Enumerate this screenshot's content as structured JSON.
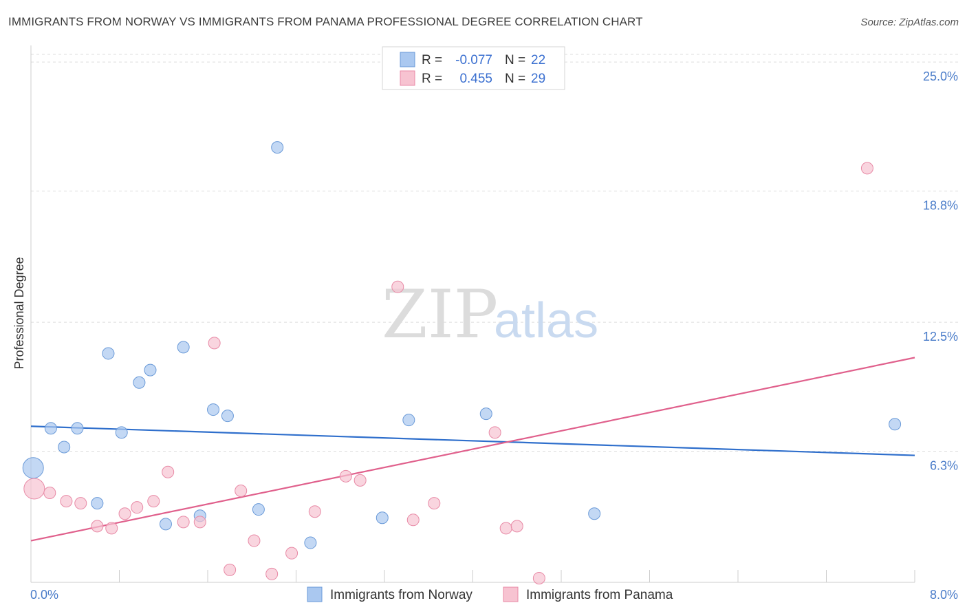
{
  "header": {
    "title": "IMMIGRANTS FROM NORWAY VS IMMIGRANTS FROM PANAMA PROFESSIONAL DEGREE CORRELATION CHART",
    "source": "Source: ZipAtlas.com"
  },
  "watermark": {
    "zip": "ZIP",
    "atlas": "atlas"
  },
  "legend": {
    "r_label": "R =",
    "n_label": "N =",
    "rows": [
      {
        "r": "-0.077",
        "n": "22"
      },
      {
        "r": "0.455",
        "n": "29"
      }
    ]
  },
  "chart_data": {
    "type": "scatter",
    "title": "IMMIGRANTS FROM NORWAY VS IMMIGRANTS FROM PANAMA PROFESSIONAL DEGREE CORRELATION CHART",
    "xlabel": "",
    "ylabel": "Professional Degree",
    "xlim": [
      0,
      8
    ],
    "ylim": [
      0,
      25.8
    ],
    "x_tick_labels": [
      "0.0%",
      "8.0%"
    ],
    "y_ticks": [
      6.3,
      12.5,
      18.8,
      25.0
    ],
    "y_tick_labels": [
      "6.3%",
      "12.5%",
      "18.8%",
      "25.0%"
    ],
    "grid": true,
    "legend_position": "top-center",
    "series": [
      {
        "name": "Immigrants from Norway",
        "color": "#aac8f0",
        "edge": "#6a9ad8",
        "line_color": "#2f6fcc",
        "trend": {
          "x": [
            0,
            8
          ],
          "y": [
            7.5,
            6.1
          ]
        },
        "points": [
          {
            "x": 0.02,
            "y": 5.5,
            "big": true
          },
          {
            "x": 0.18,
            "y": 7.4
          },
          {
            "x": 0.3,
            "y": 6.5
          },
          {
            "x": 0.42,
            "y": 7.4
          },
          {
            "x": 0.6,
            "y": 3.8
          },
          {
            "x": 0.7,
            "y": 11.0
          },
          {
            "x": 0.82,
            "y": 7.2
          },
          {
            "x": 0.98,
            "y": 9.6
          },
          {
            "x": 1.08,
            "y": 10.2
          },
          {
            "x": 1.22,
            "y": 2.8
          },
          {
            "x": 1.38,
            "y": 11.3
          },
          {
            "x": 1.53,
            "y": 3.2
          },
          {
            "x": 1.65,
            "y": 8.3
          },
          {
            "x": 1.78,
            "y": 8.0
          },
          {
            "x": 2.06,
            "y": 3.5
          },
          {
            "x": 2.23,
            "y": 20.9
          },
          {
            "x": 2.53,
            "y": 1.9
          },
          {
            "x": 3.18,
            "y": 3.1
          },
          {
            "x": 3.42,
            "y": 7.8
          },
          {
            "x": 4.12,
            "y": 8.1
          },
          {
            "x": 5.1,
            "y": 3.3
          },
          {
            "x": 7.82,
            "y": 7.6
          }
        ]
      },
      {
        "name": "Immigrants from Panama",
        "color": "#f7c3d1",
        "edge": "#e88aa6",
        "line_color": "#e0608c",
        "trend": {
          "x": [
            0,
            8
          ],
          "y": [
            2.0,
            10.8
          ]
        },
        "points": [
          {
            "x": 0.03,
            "y": 4.5,
            "big": true
          },
          {
            "x": 0.17,
            "y": 4.3
          },
          {
            "x": 0.32,
            "y": 3.9
          },
          {
            "x": 0.45,
            "y": 3.8
          },
          {
            "x": 0.6,
            "y": 2.7
          },
          {
            "x": 0.73,
            "y": 2.6
          },
          {
            "x": 0.85,
            "y": 3.3
          },
          {
            "x": 0.96,
            "y": 3.6
          },
          {
            "x": 1.11,
            "y": 3.9
          },
          {
            "x": 1.24,
            "y": 5.3
          },
          {
            "x": 1.38,
            "y": 2.9
          },
          {
            "x": 1.53,
            "y": 2.9
          },
          {
            "x": 1.66,
            "y": 11.5
          },
          {
            "x": 1.8,
            "y": 0.6
          },
          {
            "x": 1.9,
            "y": 4.4
          },
          {
            "x": 2.02,
            "y": 2.0
          },
          {
            "x": 2.18,
            "y": 0.4
          },
          {
            "x": 2.36,
            "y": 1.4
          },
          {
            "x": 2.57,
            "y": 3.4
          },
          {
            "x": 2.85,
            "y": 5.1
          },
          {
            "x": 2.98,
            "y": 4.9
          },
          {
            "x": 3.32,
            "y": 14.2
          },
          {
            "x": 3.46,
            "y": 3.0
          },
          {
            "x": 3.65,
            "y": 3.8
          },
          {
            "x": 4.2,
            "y": 7.2
          },
          {
            "x": 4.3,
            "y": 2.6
          },
          {
            "x": 4.4,
            "y": 2.7
          },
          {
            "x": 4.6,
            "y": 0.2
          },
          {
            "x": 7.57,
            "y": 19.9
          }
        ]
      }
    ]
  }
}
